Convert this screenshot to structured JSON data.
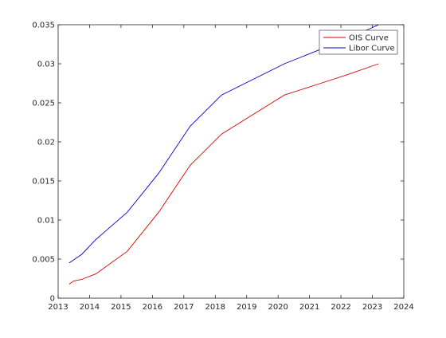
{
  "chart_data": {
    "type": "line",
    "title": "",
    "xlabel": "",
    "ylabel": "",
    "xlim": [
      2013,
      2024
    ],
    "ylim": [
      0,
      0.035
    ],
    "xticks": [
      "2013",
      "2014",
      "2015",
      "2016",
      "2017",
      "2018",
      "2019",
      "2020",
      "2021",
      "2022",
      "2023",
      "2024"
    ],
    "yticks": [
      "0",
      "0.005",
      "0.01",
      "0.015",
      "0.02",
      "0.025",
      "0.03",
      "0.035"
    ],
    "grid": false,
    "legend_position": "top-right",
    "series": [
      {
        "name": "OIS Curve",
        "color": "#e00000",
        "x": [
          2013.35,
          2013.5,
          2013.75,
          2014.2,
          2015.2,
          2016.2,
          2017.2,
          2018.2,
          2019.2,
          2020.2,
          2021.2,
          2022.2,
          2023.2
        ],
        "y": [
          0.0018,
          0.0022,
          0.0024,
          0.0031,
          0.006,
          0.011,
          0.017,
          0.021,
          0.0235,
          0.026,
          0.0273,
          0.0286,
          0.03
        ]
      },
      {
        "name": "Libor Curve",
        "color": "#0000cc",
        "x": [
          2013.35,
          2013.75,
          2014.2,
          2015.2,
          2016.2,
          2017.2,
          2018.2,
          2019.2,
          2020.2,
          2021.2,
          2022.2,
          2023.2
        ],
        "y": [
          0.0045,
          0.0056,
          0.0075,
          0.011,
          0.016,
          0.022,
          0.026,
          0.028,
          0.03,
          0.0316,
          0.0332,
          0.035
        ]
      }
    ]
  }
}
